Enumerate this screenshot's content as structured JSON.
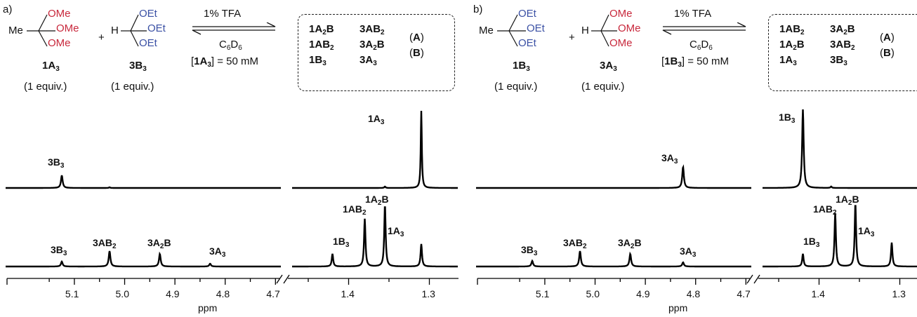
{
  "panels": [
    {
      "label": "a)",
      "reactant1": {
        "methyl": "Me",
        "groups": [
          "OMe",
          "OMe",
          "OMe"
        ],
        "name": "1A",
        "sub": "3",
        "equiv": "(1 equiv.)",
        "color": "#c8283c"
      },
      "reactant2": {
        "h": "H",
        "groups": [
          "OEt",
          "OEt",
          "OEt"
        ],
        "name": "3B",
        "sub": "3",
        "equiv": "(1 equiv.)",
        "color": "#3a50a4"
      },
      "plus": "+",
      "conditions": {
        "catalyst": "1% TFA",
        "solvent": "C6D6",
        "concentration": "[1A3] = 50 mM"
      },
      "box": {
        "col1": [
          "1A2B",
          "1AB2",
          "1B3"
        ],
        "col2": [
          "3AB2",
          "3A2B",
          "3A3"
        ],
        "labels": [
          "(A)",
          "(B)"
        ]
      },
      "top_labels": [
        "3B3",
        "1A3"
      ],
      "bottom_labels": [
        "3B3",
        "3AB2",
        "3A2B",
        "3A3",
        "1B3",
        "1AB2",
        "1A2B",
        "1A3"
      ],
      "ticks_left": [
        "5.1",
        "5.0",
        "4.9",
        "4.8",
        "4.7"
      ],
      "ticks_right": [
        "1.4",
        "1.3"
      ],
      "axis_unit": "ppm"
    },
    {
      "label": "b)",
      "reactant1": {
        "methyl": "Me",
        "groups": [
          "OEt",
          "OEt",
          "OEt"
        ],
        "name": "1B",
        "sub": "3",
        "equiv": "(1 equiv.)",
        "color": "#3a50a4"
      },
      "reactant2": {
        "h": "H",
        "groups": [
          "OMe",
          "OMe",
          "OMe"
        ],
        "name": "3A",
        "sub": "3",
        "equiv": "(1 equiv.)",
        "color": "#c8283c"
      },
      "plus": "+",
      "conditions": {
        "catalyst": "1% TFA",
        "solvent": "C6D6",
        "concentration": "[1B3] = 50 mM"
      },
      "box": {
        "col1": [
          "1AB2",
          "1A2B",
          "1A3"
        ],
        "col2": [
          "3A2B",
          "3AB2",
          "3B3"
        ],
        "labels": [
          "(A)",
          "(B)"
        ]
      },
      "top_labels": [
        "3A3",
        "1B3"
      ],
      "bottom_labels": [
        "3B3",
        "3AB2",
        "3A2B",
        "3A3",
        "1B3",
        "1AB2",
        "1A2B",
        "1A3"
      ],
      "ticks_left": [
        "5.1",
        "5.0",
        "4.9",
        "4.8",
        "4.7"
      ],
      "ticks_right": [
        "1.4",
        "1.3"
      ],
      "axis_unit": "ppm"
    }
  ]
}
